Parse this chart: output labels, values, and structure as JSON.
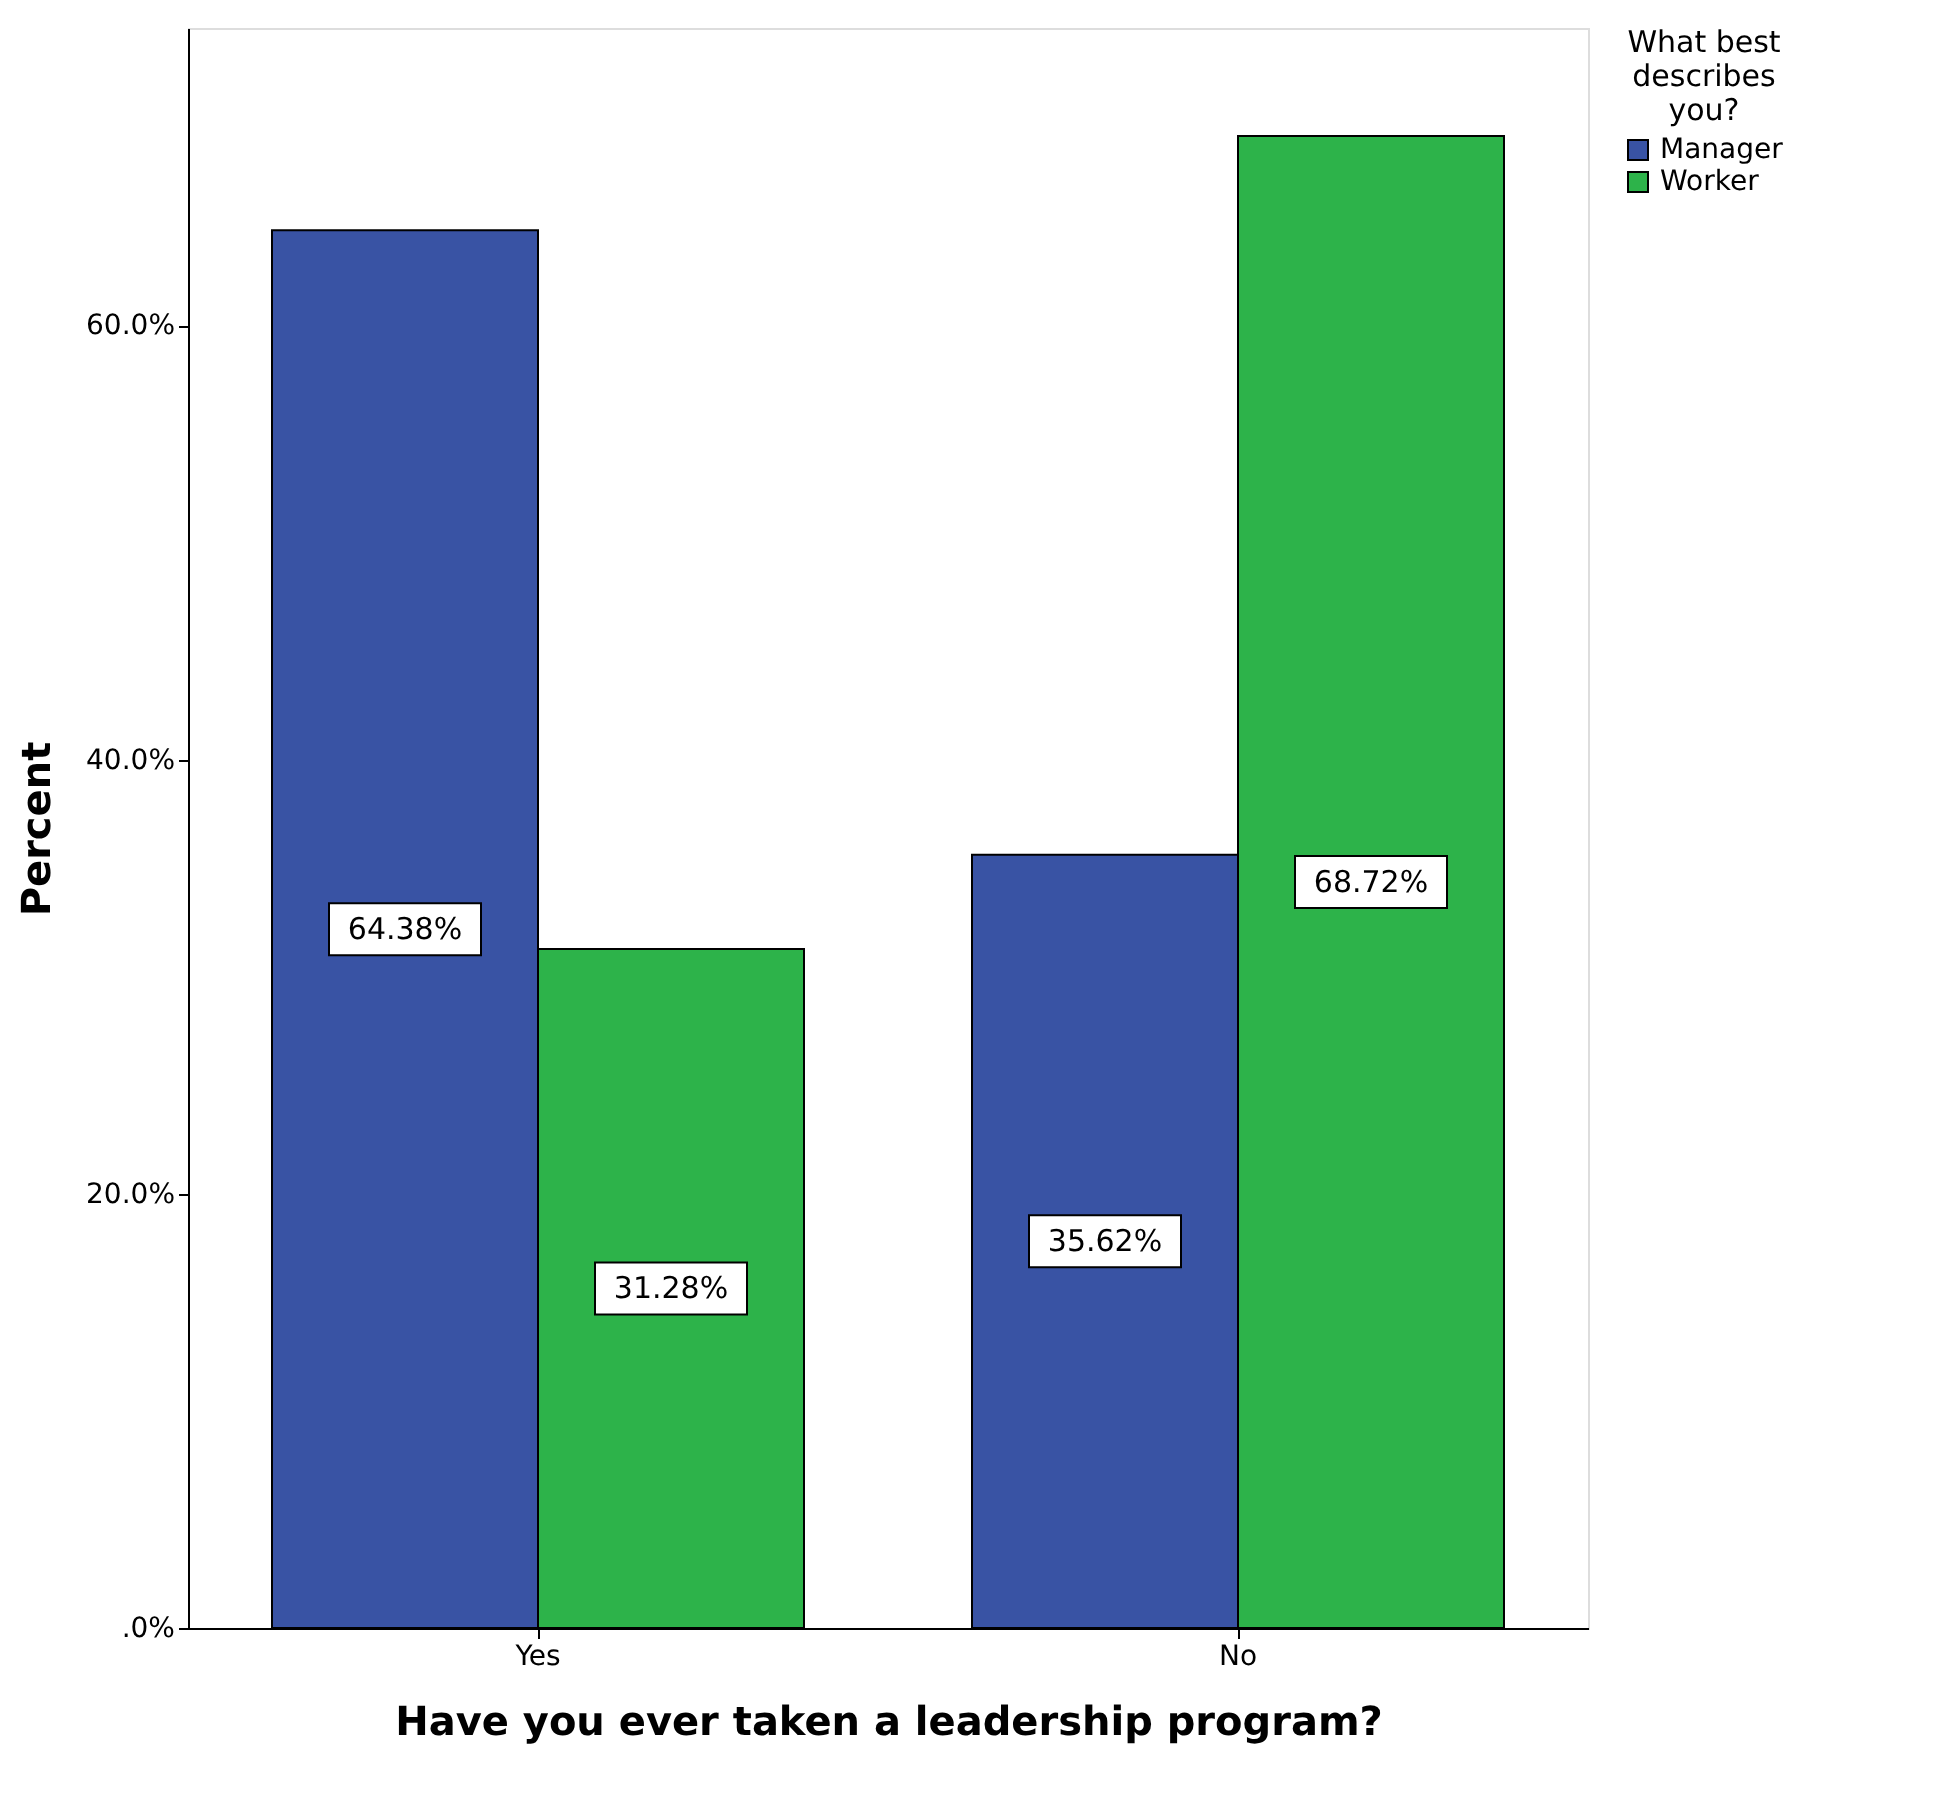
{
  "chart_data": {
    "type": "bar",
    "xlabel": "Have you ever taken a leadership program?",
    "ylabel": "Percent",
    "legend_title": "What best describes you?",
    "categories": [
      "Yes",
      "No"
    ],
    "series": [
      {
        "name": "Manager",
        "color": "#3953a4",
        "values": [
          64.38,
          35.62
        ],
        "value_labels": [
          "64.38%",
          "35.62%"
        ]
      },
      {
        "name": "Worker",
        "color": "#2db34a",
        "values": [
          31.28,
          68.72
        ],
        "value_labels": [
          "31.28%",
          "68.72%"
        ]
      }
    ],
    "ylim": [
      0,
      73.7
    ],
    "yticks": [
      {
        "value": 0,
        "label": ".0%"
      },
      {
        "value": 20,
        "label": "20.0%"
      },
      {
        "value": 40,
        "label": "40.0%"
      },
      {
        "value": 60,
        "label": "60.0%"
      }
    ],
    "grid": false,
    "legend": "top right"
  }
}
